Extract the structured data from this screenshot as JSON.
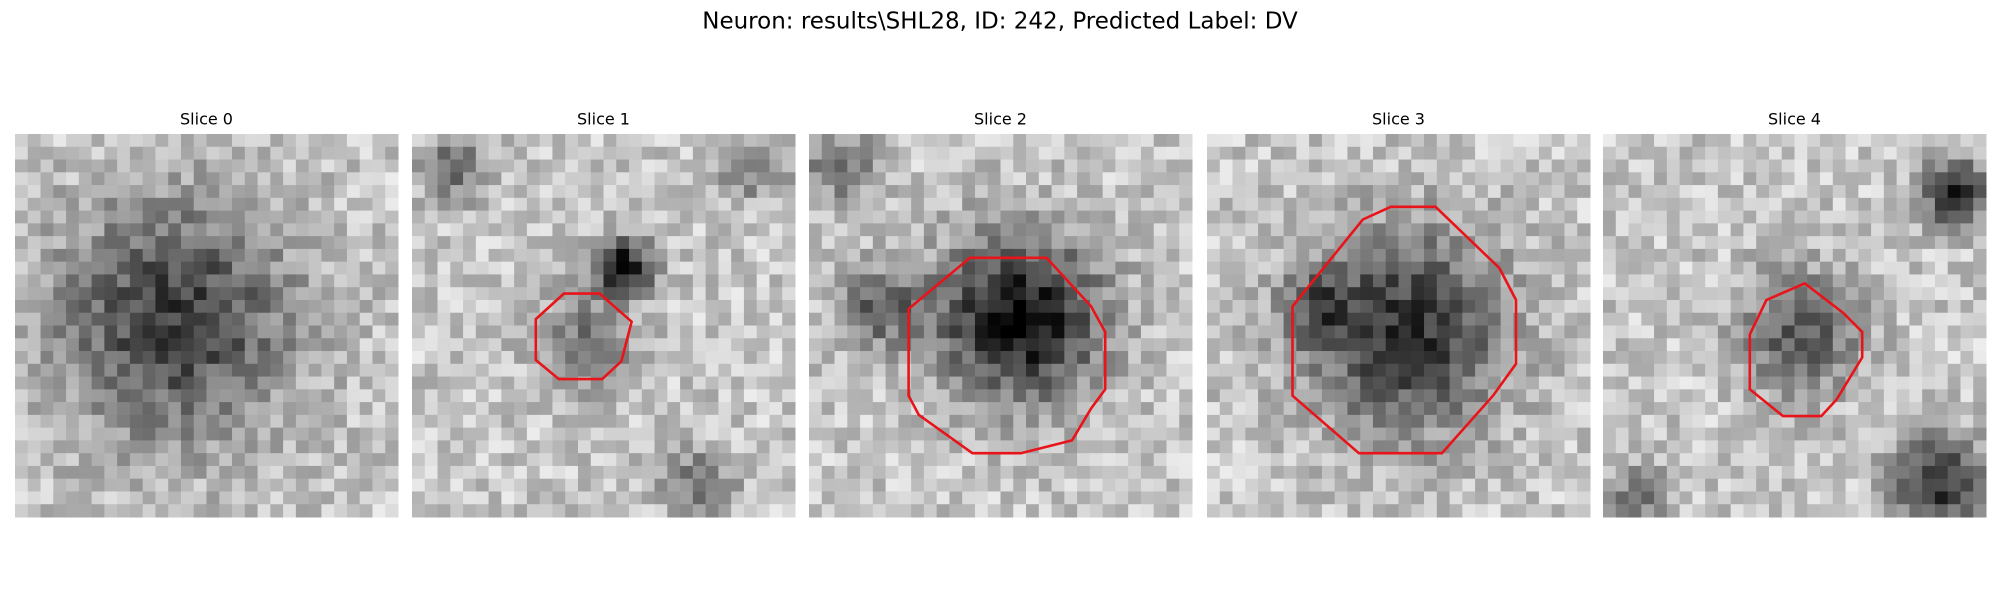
{
  "title": "Neuron: results\\SHL28, ID: 242, Predicted Label: DV",
  "panels": [
    {
      "title": "Slice 0"
    },
    {
      "title": "Slice 1"
    },
    {
      "title": "Slice 2"
    },
    {
      "title": "Slice 3"
    },
    {
      "title": "Slice 4"
    }
  ]
}
